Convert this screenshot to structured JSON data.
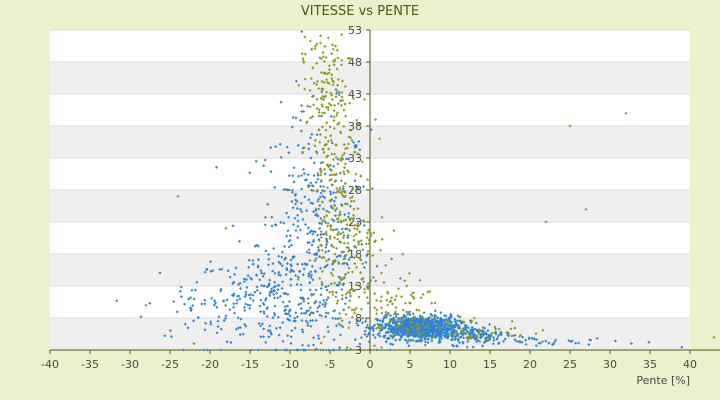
{
  "chart_data": {
    "type": "scatter",
    "title": "VITESSE vs PENTE",
    "xlabel": "Pente [%]",
    "ylabel": "",
    "xlim": [
      -40,
      40
    ],
    "ylim": [
      3,
      53
    ],
    "x_ticks": [
      -40,
      -35,
      -30,
      -25,
      -20,
      -15,
      -10,
      -5,
      0,
      5,
      10,
      15,
      20,
      25,
      30,
      35,
      40
    ],
    "y_ticks": [
      3,
      8,
      13,
      18,
      23,
      28,
      33,
      38,
      43,
      48,
      53
    ],
    "y_ticks_shown": [
      "3",
      "8",
      "13",
      "18",
      "23",
      "28",
      "33",
      "38",
      "43",
      "48",
      "53"
    ],
    "grid": true,
    "legend": "none",
    "colors": {
      "page_background": "#ecf0cc",
      "plot_band_light": "#ffffff",
      "plot_band_dark": "#efefef",
      "series_blue": "#2f84d4",
      "series_olive": "#8f9a1c",
      "axis": "#4a5a10",
      "title": "#4a5a10"
    },
    "series": [
      {
        "color": "#2f84d4",
        "marker": "diamond",
        "clusters": [
          {
            "center": [
              -7,
              20
            ],
            "spread": [
              3.5,
              10
            ],
            "n": 420
          },
          {
            "center": [
              -12,
              11
            ],
            "spread": [
              5,
              4
            ],
            "n": 220
          },
          {
            "center": [
              -20,
              10
            ],
            "spread": [
              4,
              3
            ],
            "n": 60
          },
          {
            "center": [
              6,
              6.5
            ],
            "spread": [
              2.5,
              0.9
            ],
            "n": 900
          },
          {
            "center": [
              12,
              5.5
            ],
            "spread": [
              3,
              0.8
            ],
            "n": 160
          },
          {
            "center": [
              22,
              4.3
            ],
            "spread": [
              6,
              0.4
            ],
            "n": 50
          }
        ]
      },
      {
        "color": "#8f9a1c",
        "marker": "diamond",
        "clusters": [
          {
            "center": [
              -4.5,
              30
            ],
            "spread": [
              1.6,
              12
            ],
            "n": 260
          },
          {
            "center": [
              -6,
              44
            ],
            "spread": [
              1.4,
              4
            ],
            "n": 90
          },
          {
            "center": [
              -2,
              18
            ],
            "spread": [
              2,
              5
            ],
            "n": 90
          },
          {
            "center": [
              3,
              9
            ],
            "spread": [
              3,
              2.5
            ],
            "n": 100
          },
          {
            "center": [
              12,
              6
            ],
            "spread": [
              4,
              1
            ],
            "n": 60
          }
        ],
        "outliers": [
          [
            -24,
            27
          ],
          [
            -18,
            22
          ],
          [
            25,
            38
          ],
          [
            32,
            40
          ],
          [
            22,
            23
          ],
          [
            27,
            25
          ],
          [
            43,
            5
          ],
          [
            0.7,
            39
          ],
          [
            1.2,
            36
          ],
          [
            -28,
            10
          ],
          [
            -22,
            4
          ]
        ]
      }
    ]
  }
}
